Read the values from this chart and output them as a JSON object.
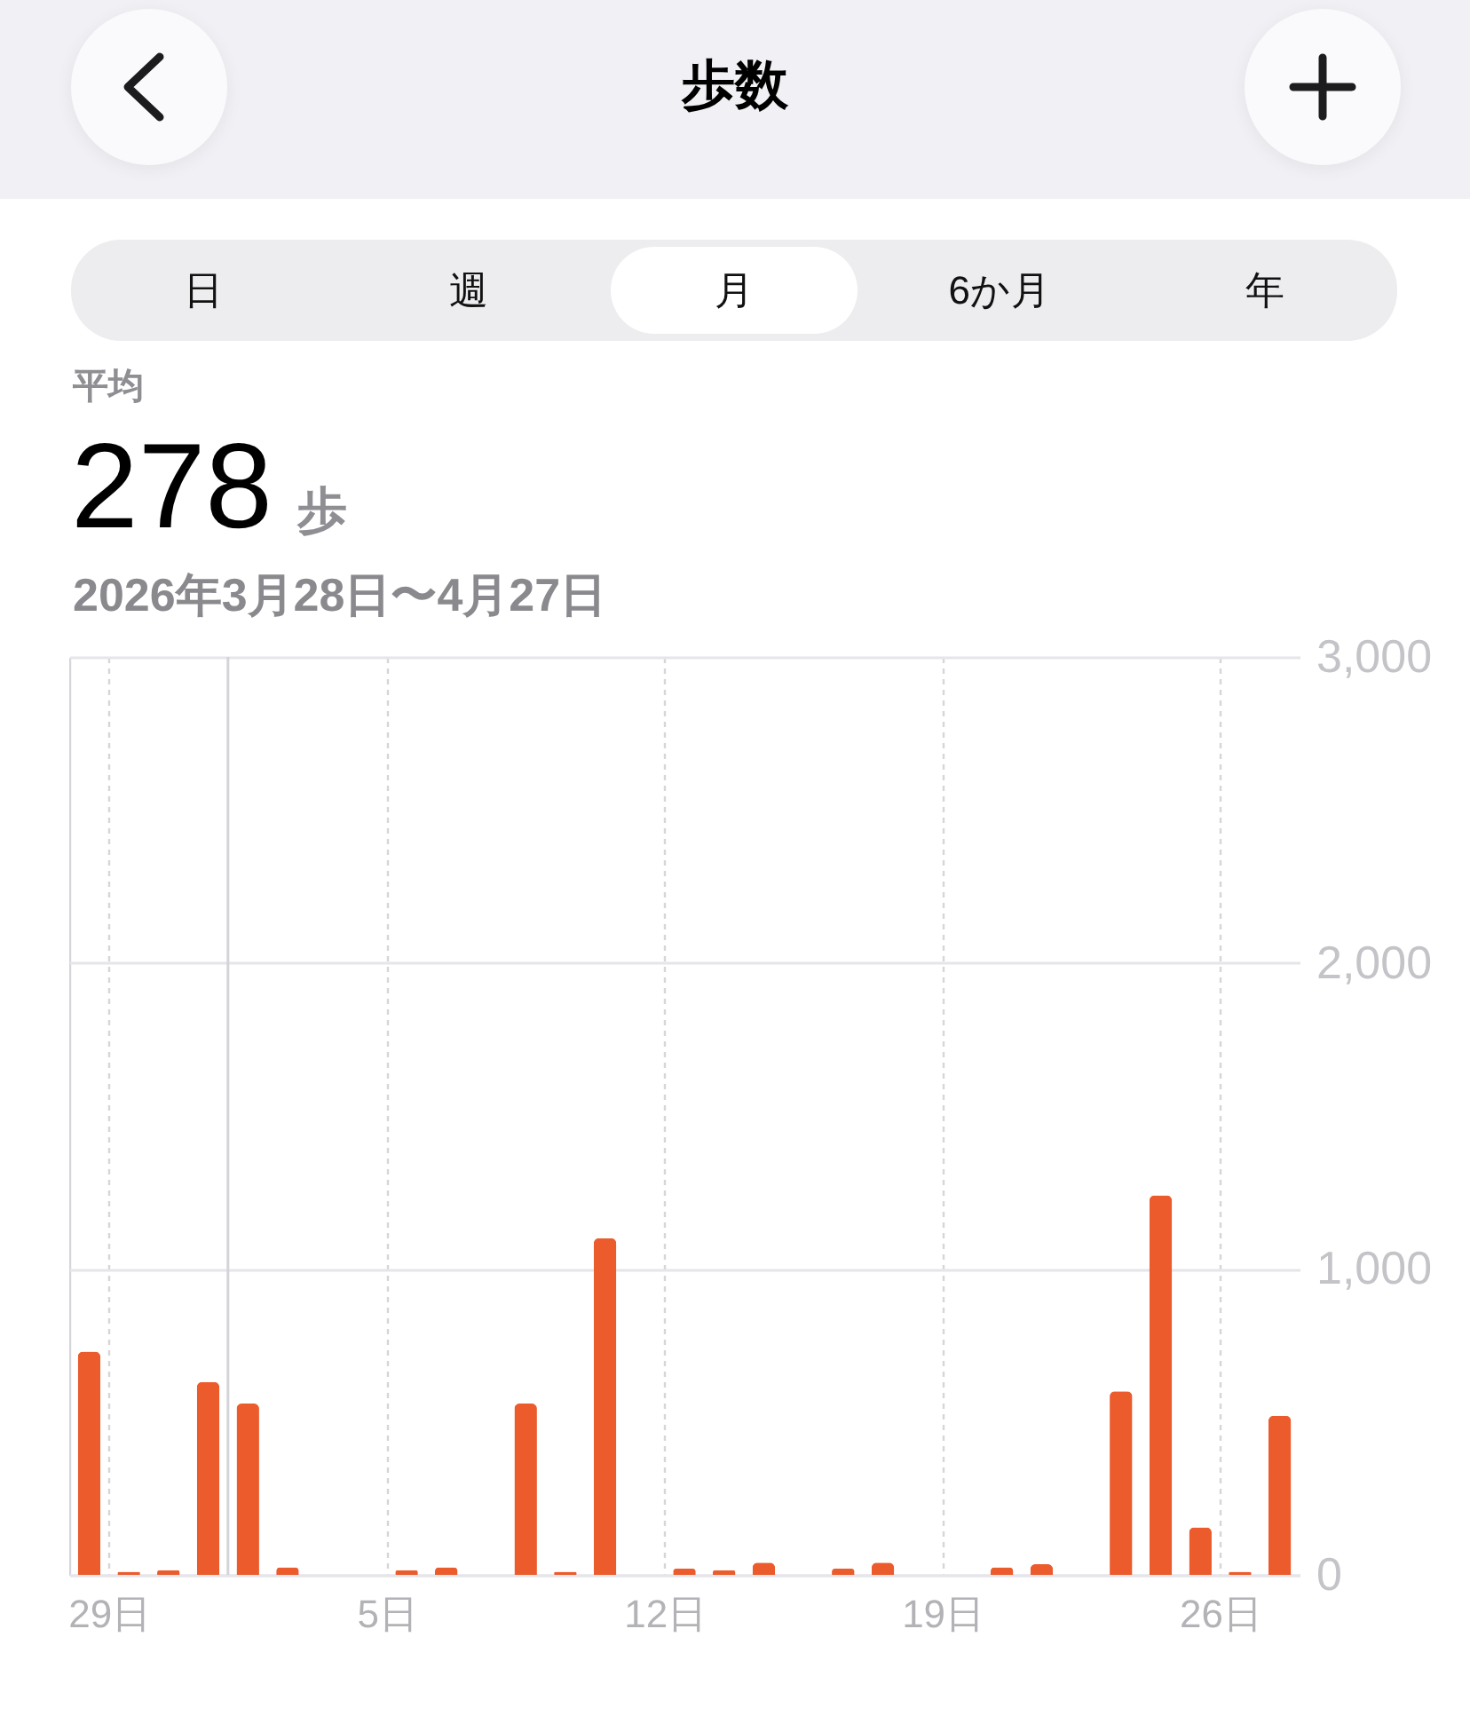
{
  "chart_data": {
    "type": "bar",
    "title": "歩数",
    "annotations": [
      "平均",
      "278",
      "歩",
      "2026年3月28日〜4月27日",
      "日",
      "週",
      "月",
      "6か月",
      "年"
    ],
    "x": [
      "2026-03-28T12:00",
      "2026-03-29T12:00",
      "2026-03-30T12:00",
      "2026-03-31T12:00",
      "2026-04-01T12:00",
      "2026-04-02T12:00",
      "2026-04-03T12:00",
      "2026-04-04T12:00",
      "2026-04-05T12:00",
      "2026-04-06T12:00",
      "2026-04-07T12:00",
      "2026-04-08T12:00",
      "2026-04-09T12:00",
      "2026-04-10T12:00",
      "2026-04-11T12:00",
      "2026-04-12T12:00",
      "2026-04-13T12:00",
      "2026-04-14T12:00",
      "2026-04-15T12:00",
      "2026-04-16T12:00",
      "2026-04-17T12:00",
      "2026-04-18T12:00",
      "2026-04-19T12:00",
      "2026-04-20T12:00",
      "2026-04-21T12:00",
      "2026-04-22T12:00",
      "2026-04-23T12:00",
      "2026-04-24T12:00",
      "2026-04-25T12:00",
      "2026-04-26T12:00",
      "2026-04-27T12:00"
    ],
    "values": [
      730,
      10,
      15,
      630,
      560,
      25,
      null,
      null,
      15,
      25,
      null,
      560,
      10,
      1100,
      null,
      20,
      15,
      40,
      null,
      20,
      40,
      null,
      null,
      25,
      35,
      null,
      600,
      1240,
      155,
      10,
      520
    ],
    "color": "#eb5b2c",
    "xlim": [
      "2026-03-28",
      "2026-04-28"
    ],
    "xticks": [
      {
        "value": "2026-03-28",
        "label": null
      },
      {
        "value": "2026-03-29",
        "label": "29日"
      },
      {
        "value": "2026-04-05",
        "label": "5日"
      },
      {
        "value": "2026-04-12",
        "label": "12日"
      },
      {
        "value": "2026-04-19",
        "label": "19日"
      },
      {
        "value": "2026-04-26",
        "label": "26日"
      }
    ],
    "ylim": [
      0,
      3000
    ],
    "yticks": [
      0,
      {
        "value": 1000,
        "label": "1,000"
      },
      {
        "value": 2000,
        "label": "2,000"
      },
      {
        "value": 3000,
        "label": "3,000"
      }
    ],
    "ref_lines": [
      {
        "axis": "x",
        "value": "2026-04-01",
        "color": "#d4d4d8",
        "line_style": "solid"
      }
    ],
    "grid": true
  }
}
